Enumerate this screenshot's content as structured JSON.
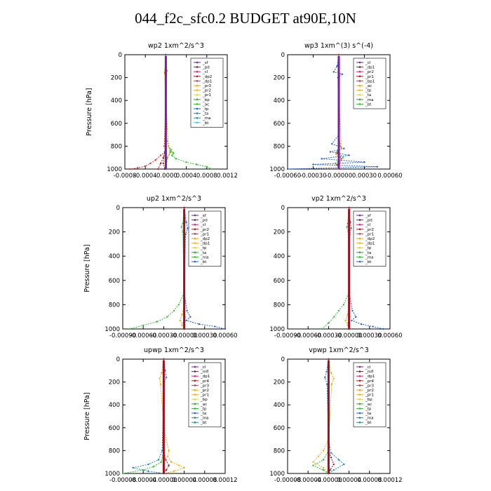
{
  "figure_title": "044_f2c_sfc0.2  BUDGET at90E,10N",
  "colors": {
    "sf": "#7a1fa2",
    "pd": "#8b1a4a",
    "cl": "#e0207a",
    "dp2": "#b01a1a",
    "dp1": "#e03030",
    "pr3": "#ffa000",
    "pr2": "#ffb030",
    "pr1": "#e8d800",
    "bp": "#20b020",
    "ac": "#30c030",
    "tp": "#2060e0",
    "ta": "#1a8ad0",
    "ma": "#2090a0",
    "bt": "#30d0e0",
    "mfl": "#a01040",
    "pr4": "#f0b000"
  },
  "chart_data": [
    {
      "type": "line",
      "title": "wp2  1xm^2/s^3",
      "ylabel": "Pressure [hPa]",
      "ylim": [
        1000,
        0
      ],
      "xlim": [
        -0.0008,
        0.0012
      ],
      "yticks": [
        "0",
        "200",
        "400",
        "600",
        "800",
        "1000"
      ],
      "xticks": [
        "-0.0008",
        "-0.0004",
        "-0.0000",
        "0.0004",
        "0.0008",
        "0.0012"
      ],
      "legend": [
        "_sf",
        "_pd",
        "_cl",
        "_dp2",
        "_dp1",
        "_pr3",
        "_pr2",
        "_pr1",
        "_bp",
        "_ac",
        "_tp",
        "_ta",
        "_ma",
        "_bt"
      ],
      "series": [
        {
          "name": "_sf",
          "color_key": "sf",
          "x": [
            0,
            0,
            0
          ],
          "y": [
            0,
            500,
            1000
          ]
        },
        {
          "name": "_pd",
          "color_key": "pd",
          "x": [
            0,
            0,
            -2e-05,
            -5e-05,
            -2e-05
          ],
          "y": [
            0,
            500,
            850,
            950,
            1000
          ]
        },
        {
          "name": "_dp1",
          "color_key": "dp1",
          "x": [
            0,
            -1e-05,
            -2e-05,
            0,
            -3e-05,
            0,
            -0.0001,
            -0.0002,
            -0.0003,
            -0.0004,
            -0.00055,
            -0.0007
          ],
          "y": [
            0,
            130,
            160,
            400,
            800,
            850,
            880,
            920,
            950,
            975,
            990,
            1000
          ]
        },
        {
          "name": "_dp2",
          "color_key": "dp2",
          "x": [
            0,
            0,
            -5e-05,
            -0.0001,
            -0.00015
          ],
          "y": [
            0,
            800,
            900,
            950,
            1000
          ]
        },
        {
          "name": "_ac",
          "color_key": "ac",
          "x": [
            0,
            2e-05,
            1e-05,
            0,
            5e-05,
            0.0001,
            0.00015,
            0.00012,
            0.0002,
            0.0004,
            0.0006,
            0.0008,
            0.0009
          ],
          "y": [
            0,
            140,
            180,
            400,
            800,
            830,
            860,
            880,
            910,
            940,
            960,
            980,
            1000
          ]
        },
        {
          "name": "_bp",
          "color_key": "bp",
          "x": [
            0,
            0,
            5e-05,
            0.0001,
            3e-05,
            0
          ],
          "y": [
            0,
            700,
            800,
            850,
            900,
            1000
          ]
        },
        {
          "name": "_pr3",
          "color_key": "pr3",
          "x": [
            0,
            -2e-05,
            0,
            5e-05,
            8e-05,
            3e-05,
            0
          ],
          "y": [
            0,
            150,
            400,
            800,
            850,
            900,
            1000
          ]
        },
        {
          "name": "_tp",
          "color_key": "tp",
          "x": [
            0,
            0,
            -2e-05,
            1e-05,
            0
          ],
          "y": [
            0,
            800,
            850,
            900,
            1000
          ]
        }
      ]
    },
    {
      "type": "line",
      "title": "wp3  1xm^(3) s^(-4)",
      "ylabel": "",
      "ylim": [
        1000,
        0
      ],
      "xlim": [
        -0.0006,
        0.0006
      ],
      "yticks": [
        "0",
        "200",
        "400",
        "600",
        "800",
        "1000"
      ],
      "xticks": [
        "-0.00060",
        "-0.00030",
        "-0.00000",
        "0.00030",
        "0.00060"
      ],
      "legend": [
        "_cl",
        "_dp1",
        "_pr2",
        "_pr1",
        "_bp1",
        "_ac",
        "_tp",
        "_ta",
        "_ma",
        "_bt"
      ],
      "series": [
        {
          "name": "_cl",
          "color_key": "sf",
          "x": [
            0,
            0,
            0
          ],
          "y": [
            0,
            500,
            1000
          ]
        },
        {
          "name": "_tp",
          "color_key": "tp",
          "x": [
            0,
            -2e-05,
            -6e-05,
            4e-05,
            -1e-05,
            0,
            -8e-05,
            6e-05,
            -0.0001,
            0.00012,
            -0.0002,
            0.0003,
            -0.0003,
            0.00045,
            -0.0006
          ],
          "y": [
            0,
            100,
            150,
            170,
            200,
            700,
            780,
            820,
            850,
            880,
            910,
            940,
            960,
            980,
            1000
          ]
        },
        {
          "name": "_ac",
          "color_key": "ac",
          "x": [
            0,
            0,
            2e-05,
            -2e-05,
            5e-05,
            -4e-05,
            0
          ],
          "y": [
            0,
            700,
            800,
            850,
            900,
            950,
            1000
          ]
        },
        {
          "name": "_pr2",
          "color_key": "pr3",
          "x": [
            0,
            -1e-05,
            3e-05,
            -3e-05,
            2e-05,
            0
          ],
          "y": [
            0,
            150,
            820,
            870,
            930,
            1000
          ]
        },
        {
          "name": "_dp1",
          "color_key": "dp1",
          "x": [
            0,
            0,
            -2e-05,
            3e-05,
            -2e-05,
            1e-05
          ],
          "y": [
            0,
            800,
            860,
            910,
            960,
            1000
          ]
        }
      ]
    },
    {
      "type": "line",
      "title": "up2  1xm^2/s^3",
      "ylabel": "Pressure [hPa]",
      "ylim": [
        1000,
        0
      ],
      "xlim": [
        -0.0009,
        0.0006
      ],
      "yticks": [
        "0",
        "200",
        "400",
        "600",
        "800",
        "1000"
      ],
      "xticks": [
        "-0.00090",
        "-0.00060",
        "-0.00030",
        "-0.00000",
        "0.00030",
        "0.00060"
      ],
      "legend": [
        "_sf",
        "_pd",
        "_cl",
        "_pr2",
        "_pr1",
        "_dp2",
        "_dp1",
        "_tp",
        "_ta",
        "_ma",
        "_bt"
      ],
      "series": [
        {
          "name": "_tp",
          "color_key": "tp",
          "x": [
            0,
            3e-05,
            5e-05,
            2e-05,
            0,
            4e-05,
            9e-05,
            3e-05,
            0.00022,
            0.00045,
            0.0006
          ],
          "y": [
            0,
            120,
            170,
            220,
            700,
            850,
            900,
            930,
            960,
            980,
            1000
          ]
        },
        {
          "name": "_ac",
          "color_key": "ac",
          "x": [
            0,
            -2e-05,
            -4e-05,
            -2e-05,
            0,
            -8e-05,
            -0.00015,
            -0.00025,
            -0.0004,
            -0.0006,
            -0.0008
          ],
          "y": [
            0,
            130,
            160,
            200,
            700,
            800,
            850,
            900,
            940,
            970,
            1000
          ]
        },
        {
          "name": "_pr1",
          "color_key": "pr3",
          "x": [
            0,
            0,
            -3e-05,
            -6e-05,
            -3e-05,
            0
          ],
          "y": [
            0,
            800,
            880,
            930,
            970,
            1000
          ]
        },
        {
          "name": "_cl",
          "color_key": "cl",
          "x": [
            0,
            0,
            1e-05,
            -1e-05,
            0
          ],
          "y": [
            0,
            800,
            900,
            950,
            1000
          ]
        },
        {
          "name": "_dp1",
          "color_key": "dp2",
          "x": [
            0,
            0,
            0
          ],
          "y": [
            0,
            500,
            1000
          ]
        }
      ]
    },
    {
      "type": "line",
      "title": "vp2  1xm^2/s^3",
      "ylabel": "",
      "ylim": [
        1000,
        0
      ],
      "xlim": [
        -0.0009,
        0.0006
      ],
      "yticks": [
        "0",
        "200",
        "400",
        "600",
        "800",
        "1000"
      ],
      "xticks": [
        "-0.00090",
        "-0.00060",
        "-0.00030",
        "-0.00000",
        "0.00030",
        "0.00060"
      ],
      "legend": [
        "_sf",
        "_pd",
        "_cl",
        "_pr2",
        "_pr1",
        "_dp2",
        "_dp1",
        "_tp",
        "_ta",
        "_ma",
        "_bt"
      ],
      "series": [
        {
          "name": "_tp",
          "color_key": "tp",
          "x": [
            0,
            2e-05,
            3e-05,
            1e-05,
            0,
            5e-05,
            0.0001,
            4e-05,
            0.00018,
            0.00035,
            0.0005
          ],
          "y": [
            0,
            120,
            170,
            220,
            700,
            850,
            900,
            930,
            960,
            980,
            1000
          ]
        },
        {
          "name": "_ac",
          "color_key": "ac",
          "x": [
            0,
            -2e-05,
            -3e-05,
            -1e-05,
            0,
            -8e-05,
            -0.00015,
            -0.00022,
            -0.0003,
            -0.0004
          ],
          "y": [
            0,
            130,
            160,
            200,
            700,
            800,
            850,
            900,
            950,
            1000
          ]
        },
        {
          "name": "_pr1",
          "color_key": "pr3",
          "x": [
            0,
            0,
            -2e-05,
            -5e-05,
            -2e-05,
            0
          ],
          "y": [
            0,
            800,
            880,
            930,
            970,
            1000
          ]
        },
        {
          "name": "_cl",
          "color_key": "cl",
          "x": [
            0,
            0,
            1e-05,
            -1e-05,
            0
          ],
          "y": [
            0,
            800,
            900,
            950,
            1000
          ]
        },
        {
          "name": "_dp1",
          "color_key": "dp2",
          "x": [
            0,
            0,
            0
          ],
          "y": [
            0,
            500,
            1000
          ]
        }
      ]
    },
    {
      "type": "line",
      "title": "upwp  1xm^2/s^3",
      "ylabel": "Pressure [hPa]",
      "ylim": [
        1000,
        0
      ],
      "xlim": [
        -8e-05,
        0.00012
      ],
      "yticks": [
        "0",
        "200",
        "400",
        "600",
        "800",
        "1000"
      ],
      "xticks": [
        "-0.00008",
        "-0.00004",
        "-0.00000",
        "0.00004",
        "0.00008",
        "0.00012"
      ],
      "legend": [
        "_cl",
        "_mfl",
        "_dp1",
        "_pr4",
        "_pr3",
        "_pr2",
        "_pr1",
        "_bp",
        "_ac",
        "_tp",
        "_ta",
        "_ma",
        "_bt"
      ],
      "series": [
        {
          "name": "_cl",
          "color_key": "sf",
          "x": [
            0,
            0,
            0
          ],
          "y": [
            0,
            500,
            1000
          ]
        },
        {
          "name": "_pr1",
          "color_key": "pr4",
          "x": [
            0,
            -4e-06,
            -8e-06,
            -6e-06,
            0,
            1e-05,
            8e-06,
            1.5e-05,
            3e-05,
            4e-05,
            2e-05,
            0
          ],
          "y": [
            0,
            120,
            170,
            220,
            600,
            800,
            850,
            900,
            930,
            950,
            980,
            1000
          ]
        },
        {
          "name": "_tp",
          "color_key": "ta",
          "x": [
            0,
            3e-06,
            5e-06,
            0,
            -3e-06,
            -1e-05,
            -3e-05,
            -6e-05,
            -3e-05,
            0
          ],
          "y": [
            0,
            100,
            160,
            220,
            800,
            880,
            920,
            950,
            980,
            1000
          ]
        },
        {
          "name": "_bp",
          "color_key": "ac",
          "x": [
            0,
            0,
            -5e-06,
            -2e-05,
            -4e-05,
            -8e-05
          ],
          "y": [
            0,
            800,
            900,
            940,
            970,
            1000
          ]
        },
        {
          "name": "_dp1",
          "color_key": "dp2",
          "x": [
            0,
            0,
            4e-06,
            1e-05,
            5e-06,
            0
          ],
          "y": [
            0,
            800,
            880,
            930,
            970,
            1000
          ]
        }
      ]
    },
    {
      "type": "line",
      "title": "vpwp  1xm^2/s^3",
      "ylabel": "",
      "ylim": [
        1000,
        0
      ],
      "xlim": [
        -8e-05,
        0.00012
      ],
      "yticks": [
        "0",
        "200",
        "400",
        "600",
        "800",
        "1000"
      ],
      "xticks": [
        "-0.00008",
        "-0.00004",
        "-0.00000",
        "0.00004",
        "0.00008",
        "0.00012"
      ],
      "legend": [
        "_cl",
        "_mfl",
        "_dp1",
        "_pr4",
        "_pr3",
        "_pr2",
        "_pr1",
        "_bp",
        "_ac",
        "_tp",
        "_ta",
        "_ma",
        "_bt"
      ],
      "series": [
        {
          "name": "_cl",
          "color_key": "sf",
          "x": [
            0,
            0,
            0
          ],
          "y": [
            0,
            500,
            1000
          ]
        },
        {
          "name": "_pr1",
          "color_key": "pr4",
          "x": [
            0,
            5e-06,
            1e-05,
            6e-06,
            0,
            -1e-05,
            -2e-05,
            -3e-05,
            -1e-05,
            0
          ],
          "y": [
            0,
            120,
            170,
            220,
            700,
            800,
            850,
            900,
            950,
            1000
          ]
        },
        {
          "name": "_tp",
          "color_key": "ta",
          "x": [
            0,
            -4e-06,
            -7e-06,
            -3e-06,
            0,
            5e-06,
            2e-05,
            3e-05,
            1e-05,
            0
          ],
          "y": [
            0,
            110,
            160,
            220,
            700,
            820,
            880,
            920,
            970,
            1000
          ]
        },
        {
          "name": "_bp",
          "color_key": "ac",
          "x": [
            0,
            0,
            -1e-05,
            -3e-05,
            -1e-05,
            0
          ],
          "y": [
            0,
            800,
            880,
            930,
            970,
            1000
          ]
        },
        {
          "name": "_dp1",
          "color_key": "dp2",
          "x": [
            0,
            0,
            5e-06,
            1e-05,
            3e-06,
            0
          ],
          "y": [
            0,
            800,
            860,
            920,
            970,
            1000
          ]
        }
      ]
    }
  ]
}
